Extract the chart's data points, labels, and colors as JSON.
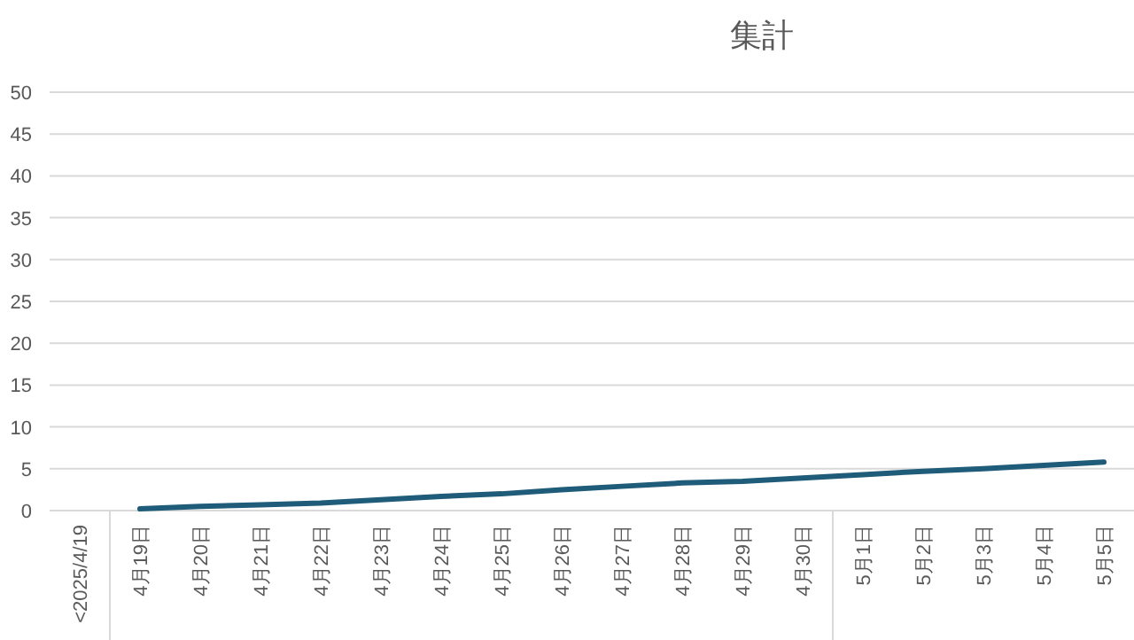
{
  "chart_data": {
    "type": "line",
    "title": "集計",
    "categories": [
      "<2025/4/19",
      "4月19日",
      "4月20日",
      "4月21日",
      "4月22日",
      "4月23日",
      "4月24日",
      "4月25日",
      "4月26日",
      "4月27日",
      "4月28日",
      "4月29日",
      "4月30日",
      "5月1日",
      "5月2日",
      "5月3日",
      "5月4日",
      "5月5日"
    ],
    "series": [
      {
        "color": "#1f5c7a",
        "values": [
          null,
          0.2,
          0.5,
          0.7,
          0.9,
          1.3,
          1.7,
          2.0,
          2.5,
          2.9,
          3.3,
          3.5,
          3.9,
          4.3,
          4.7,
          5.0,
          5.4,
          5.8
        ]
      }
    ],
    "ylim": [
      0,
      50
    ],
    "yticks": [
      0,
      5,
      10,
      15,
      20,
      25,
      30,
      35,
      40,
      45,
      50
    ],
    "grid": "y",
    "marker": "none",
    "line_style": "solid"
  }
}
